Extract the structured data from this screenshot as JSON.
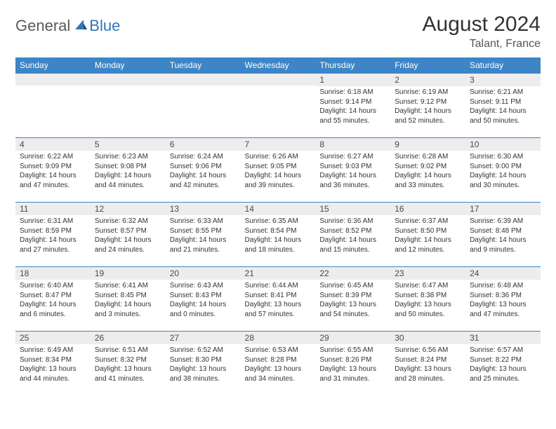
{
  "logo": {
    "text1": "General",
    "text2": "Blue"
  },
  "title": "August 2024",
  "location": "Talant, France",
  "colors": {
    "header_bg": "#3d85c6",
    "header_text": "#ffffff",
    "daynum_bg": "#ededed",
    "border": "#3d85c6",
    "logo_gray": "#5a5a5a",
    "logo_blue": "#2f77bb"
  },
  "weekdays": [
    "Sunday",
    "Monday",
    "Tuesday",
    "Wednesday",
    "Thursday",
    "Friday",
    "Saturday"
  ],
  "weeks": [
    [
      {
        "n": "",
        "sr": "",
        "ss": "",
        "dl": ""
      },
      {
        "n": "",
        "sr": "",
        "ss": "",
        "dl": ""
      },
      {
        "n": "",
        "sr": "",
        "ss": "",
        "dl": ""
      },
      {
        "n": "",
        "sr": "",
        "ss": "",
        "dl": ""
      },
      {
        "n": "1",
        "sr": "Sunrise: 6:18 AM",
        "ss": "Sunset: 9:14 PM",
        "dl": "Daylight: 14 hours and 55 minutes."
      },
      {
        "n": "2",
        "sr": "Sunrise: 6:19 AM",
        "ss": "Sunset: 9:12 PM",
        "dl": "Daylight: 14 hours and 52 minutes."
      },
      {
        "n": "3",
        "sr": "Sunrise: 6:21 AM",
        "ss": "Sunset: 9:11 PM",
        "dl": "Daylight: 14 hours and 50 minutes."
      }
    ],
    [
      {
        "n": "4",
        "sr": "Sunrise: 6:22 AM",
        "ss": "Sunset: 9:09 PM",
        "dl": "Daylight: 14 hours and 47 minutes."
      },
      {
        "n": "5",
        "sr": "Sunrise: 6:23 AM",
        "ss": "Sunset: 9:08 PM",
        "dl": "Daylight: 14 hours and 44 minutes."
      },
      {
        "n": "6",
        "sr": "Sunrise: 6:24 AM",
        "ss": "Sunset: 9:06 PM",
        "dl": "Daylight: 14 hours and 42 minutes."
      },
      {
        "n": "7",
        "sr": "Sunrise: 6:26 AM",
        "ss": "Sunset: 9:05 PM",
        "dl": "Daylight: 14 hours and 39 minutes."
      },
      {
        "n": "8",
        "sr": "Sunrise: 6:27 AM",
        "ss": "Sunset: 9:03 PM",
        "dl": "Daylight: 14 hours and 36 minutes."
      },
      {
        "n": "9",
        "sr": "Sunrise: 6:28 AM",
        "ss": "Sunset: 9:02 PM",
        "dl": "Daylight: 14 hours and 33 minutes."
      },
      {
        "n": "10",
        "sr": "Sunrise: 6:30 AM",
        "ss": "Sunset: 9:00 PM",
        "dl": "Daylight: 14 hours and 30 minutes."
      }
    ],
    [
      {
        "n": "11",
        "sr": "Sunrise: 6:31 AM",
        "ss": "Sunset: 8:59 PM",
        "dl": "Daylight: 14 hours and 27 minutes."
      },
      {
        "n": "12",
        "sr": "Sunrise: 6:32 AM",
        "ss": "Sunset: 8:57 PM",
        "dl": "Daylight: 14 hours and 24 minutes."
      },
      {
        "n": "13",
        "sr": "Sunrise: 6:33 AM",
        "ss": "Sunset: 8:55 PM",
        "dl": "Daylight: 14 hours and 21 minutes."
      },
      {
        "n": "14",
        "sr": "Sunrise: 6:35 AM",
        "ss": "Sunset: 8:54 PM",
        "dl": "Daylight: 14 hours and 18 minutes."
      },
      {
        "n": "15",
        "sr": "Sunrise: 6:36 AM",
        "ss": "Sunset: 8:52 PM",
        "dl": "Daylight: 14 hours and 15 minutes."
      },
      {
        "n": "16",
        "sr": "Sunrise: 6:37 AM",
        "ss": "Sunset: 8:50 PM",
        "dl": "Daylight: 14 hours and 12 minutes."
      },
      {
        "n": "17",
        "sr": "Sunrise: 6:39 AM",
        "ss": "Sunset: 8:48 PM",
        "dl": "Daylight: 14 hours and 9 minutes."
      }
    ],
    [
      {
        "n": "18",
        "sr": "Sunrise: 6:40 AM",
        "ss": "Sunset: 8:47 PM",
        "dl": "Daylight: 14 hours and 6 minutes."
      },
      {
        "n": "19",
        "sr": "Sunrise: 6:41 AM",
        "ss": "Sunset: 8:45 PM",
        "dl": "Daylight: 14 hours and 3 minutes."
      },
      {
        "n": "20",
        "sr": "Sunrise: 6:43 AM",
        "ss": "Sunset: 8:43 PM",
        "dl": "Daylight: 14 hours and 0 minutes."
      },
      {
        "n": "21",
        "sr": "Sunrise: 6:44 AM",
        "ss": "Sunset: 8:41 PM",
        "dl": "Daylight: 13 hours and 57 minutes."
      },
      {
        "n": "22",
        "sr": "Sunrise: 6:45 AM",
        "ss": "Sunset: 8:39 PM",
        "dl": "Daylight: 13 hours and 54 minutes."
      },
      {
        "n": "23",
        "sr": "Sunrise: 6:47 AM",
        "ss": "Sunset: 8:38 PM",
        "dl": "Daylight: 13 hours and 50 minutes."
      },
      {
        "n": "24",
        "sr": "Sunrise: 6:48 AM",
        "ss": "Sunset: 8:36 PM",
        "dl": "Daylight: 13 hours and 47 minutes."
      }
    ],
    [
      {
        "n": "25",
        "sr": "Sunrise: 6:49 AM",
        "ss": "Sunset: 8:34 PM",
        "dl": "Daylight: 13 hours and 44 minutes."
      },
      {
        "n": "26",
        "sr": "Sunrise: 6:51 AM",
        "ss": "Sunset: 8:32 PM",
        "dl": "Daylight: 13 hours and 41 minutes."
      },
      {
        "n": "27",
        "sr": "Sunrise: 6:52 AM",
        "ss": "Sunset: 8:30 PM",
        "dl": "Daylight: 13 hours and 38 minutes."
      },
      {
        "n": "28",
        "sr": "Sunrise: 6:53 AM",
        "ss": "Sunset: 8:28 PM",
        "dl": "Daylight: 13 hours and 34 minutes."
      },
      {
        "n": "29",
        "sr": "Sunrise: 6:55 AM",
        "ss": "Sunset: 8:26 PM",
        "dl": "Daylight: 13 hours and 31 minutes."
      },
      {
        "n": "30",
        "sr": "Sunrise: 6:56 AM",
        "ss": "Sunset: 8:24 PM",
        "dl": "Daylight: 13 hours and 28 minutes."
      },
      {
        "n": "31",
        "sr": "Sunrise: 6:57 AM",
        "ss": "Sunset: 8:22 PM",
        "dl": "Daylight: 13 hours and 25 minutes."
      }
    ]
  ]
}
